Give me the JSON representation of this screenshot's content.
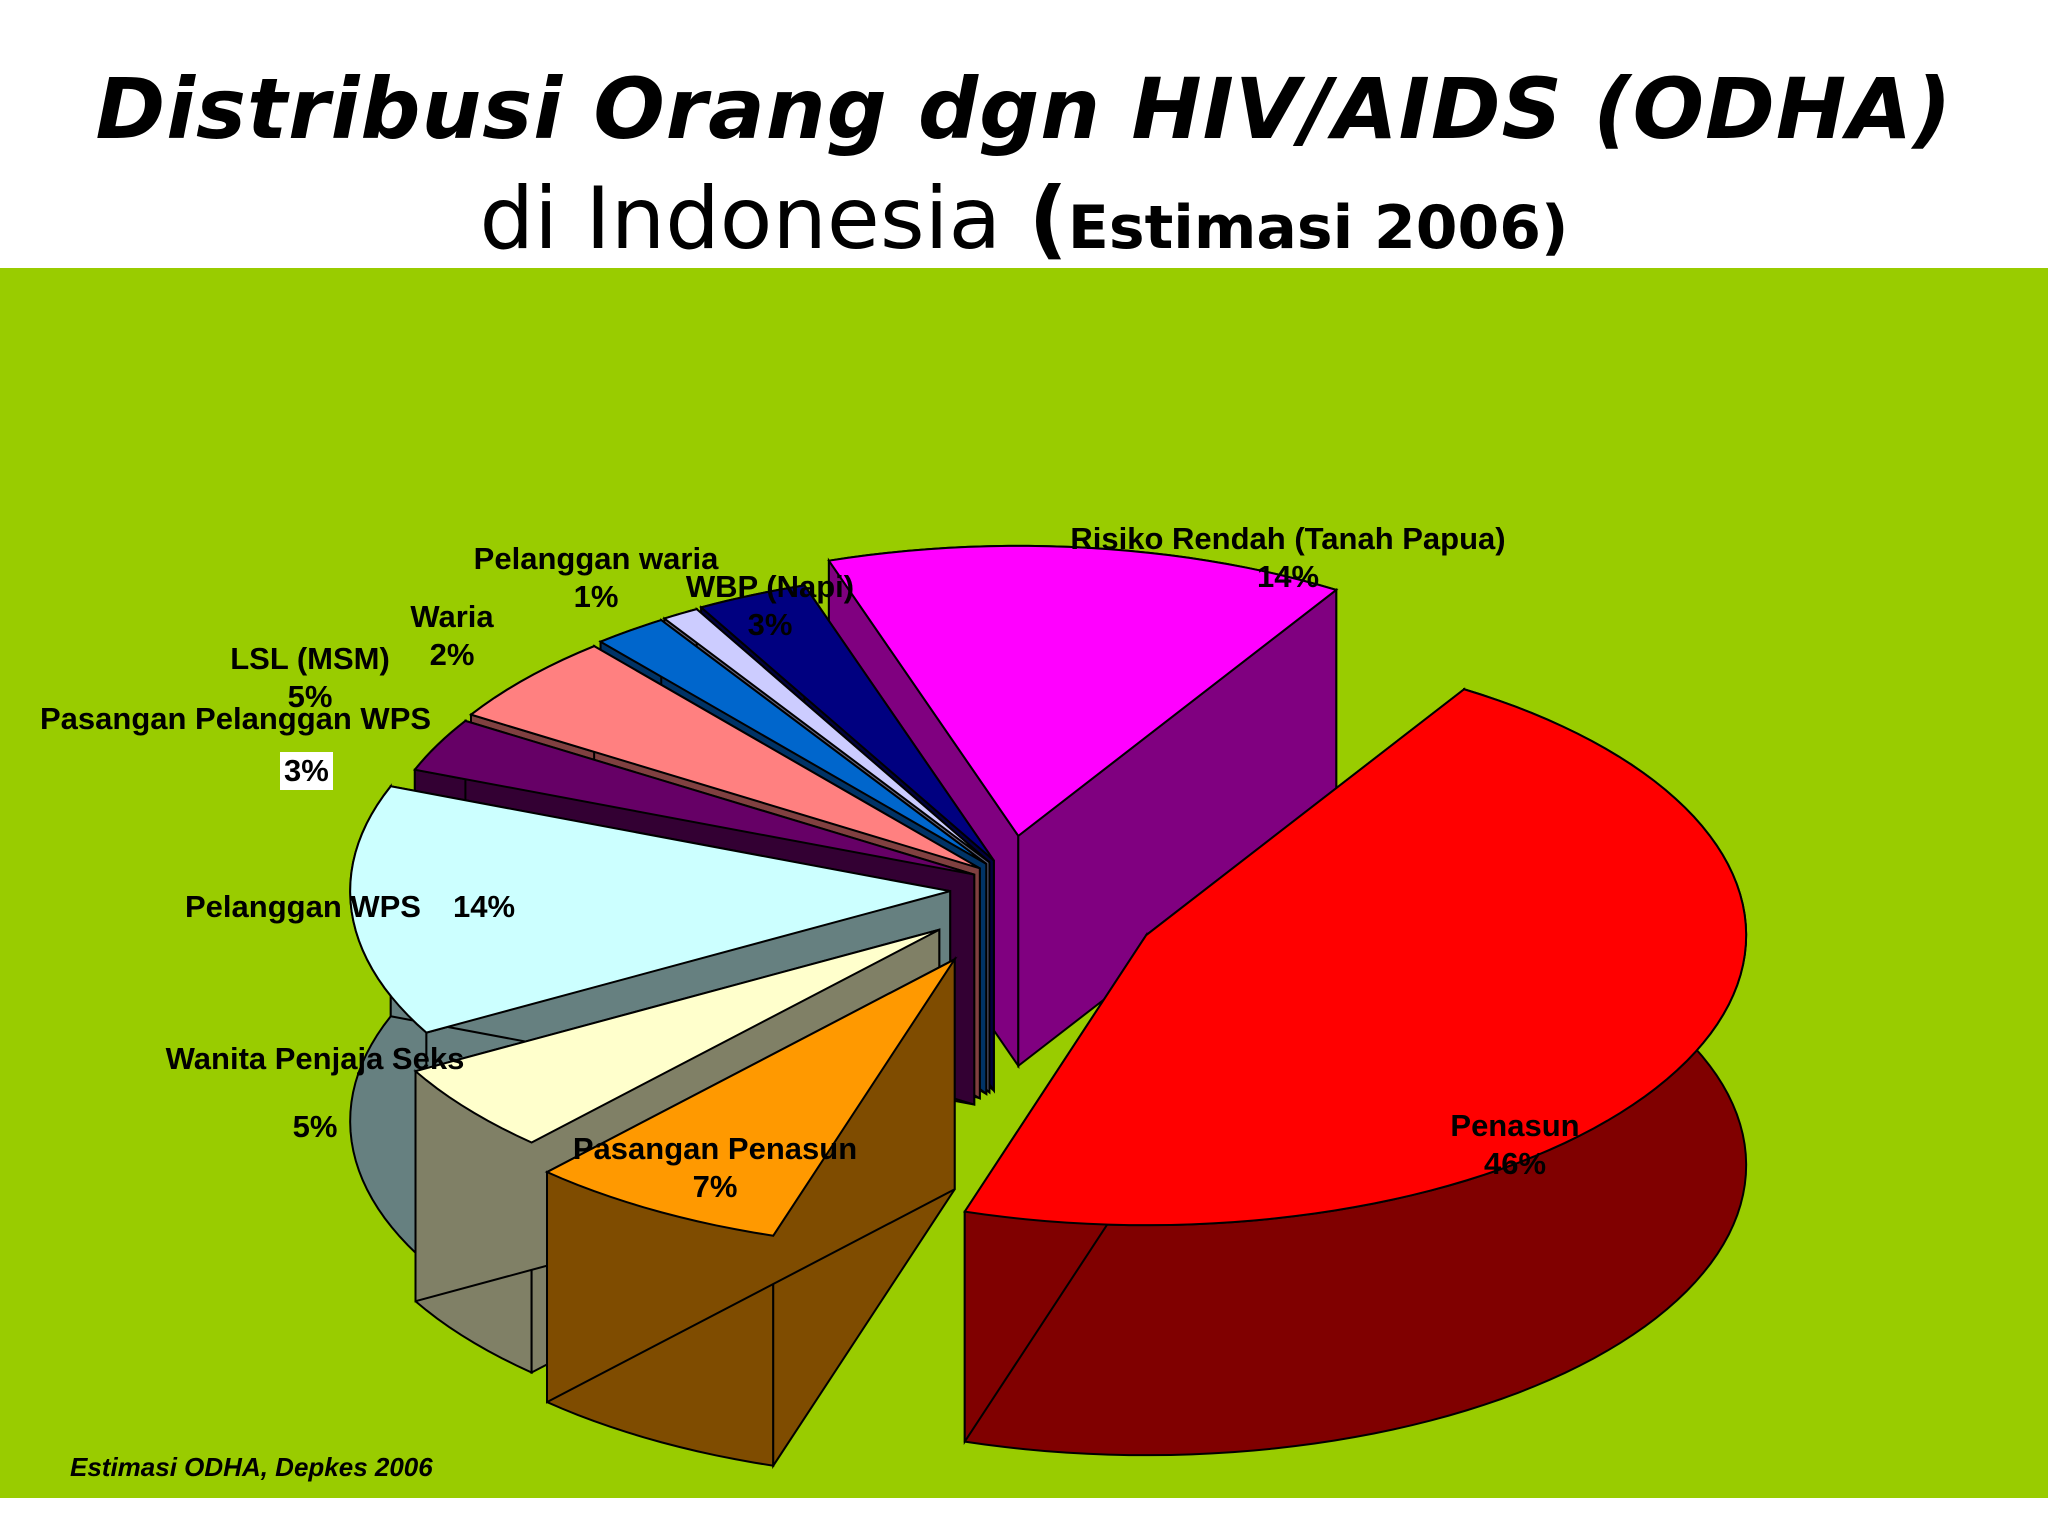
{
  "title": {
    "line1": "Distribusi Orang dgn HIV/AIDS (ODHA)",
    "line2_main": "di Indonesia",
    "line2_paren_open": "(",
    "line2_sub": "Estimasi 2006",
    "line2_paren_close": ")"
  },
  "source_note": "Estimasi ODHA, Depkes 2006",
  "chart_data": {
    "type": "pie",
    "title": "Distribusi Orang dgn HIV/AIDS (ODHA) di Indonesia (Estimasi 2006)",
    "style": "3d exploded",
    "slices": [
      {
        "name": "Penasun",
        "label": "46%",
        "value": 46,
        "top_color": "#ff0000",
        "side_color": "#800000"
      },
      {
        "name": "Pasangan Penasun",
        "label": "7%",
        "value": 7,
        "top_color": "#ff9900",
        "side_color": "#7f4c00"
      },
      {
        "name": "Wanita Penjaja Seks",
        "label": "5%",
        "value": 5,
        "top_color": "#ffffcc",
        "side_color": "#808066"
      },
      {
        "name": "Pelanggan WPS",
        "label": "14%",
        "value": 14,
        "top_color": "#ccffff",
        "side_color": "#668080"
      },
      {
        "name": "Pasangan Pelanggan WPS",
        "label": "3%",
        "value": 3,
        "top_color": "#660066",
        "side_color": "#330033"
      },
      {
        "name": "LSL (MSM)",
        "label": "5%",
        "value": 5,
        "top_color": "#ff8080",
        "side_color": "#804040"
      },
      {
        "name": "Waria",
        "label": "2%",
        "value": 2,
        "top_color": "#0066cc",
        "side_color": "#003366"
      },
      {
        "name": "Pelanggan waria",
        "label": "1%",
        "value": 1,
        "top_color": "#ccccff",
        "side_color": "#666680"
      },
      {
        "name": "WBP (Napi)",
        "label": "3%",
        "value": 3,
        "top_color": "#000080",
        "side_color": "#000040"
      },
      {
        "name": "Risiko Rendah (Tanah Papua)",
        "label": "14%",
        "value": 14,
        "top_color": "#ff00ff",
        "side_color": "#800080"
      }
    ]
  }
}
